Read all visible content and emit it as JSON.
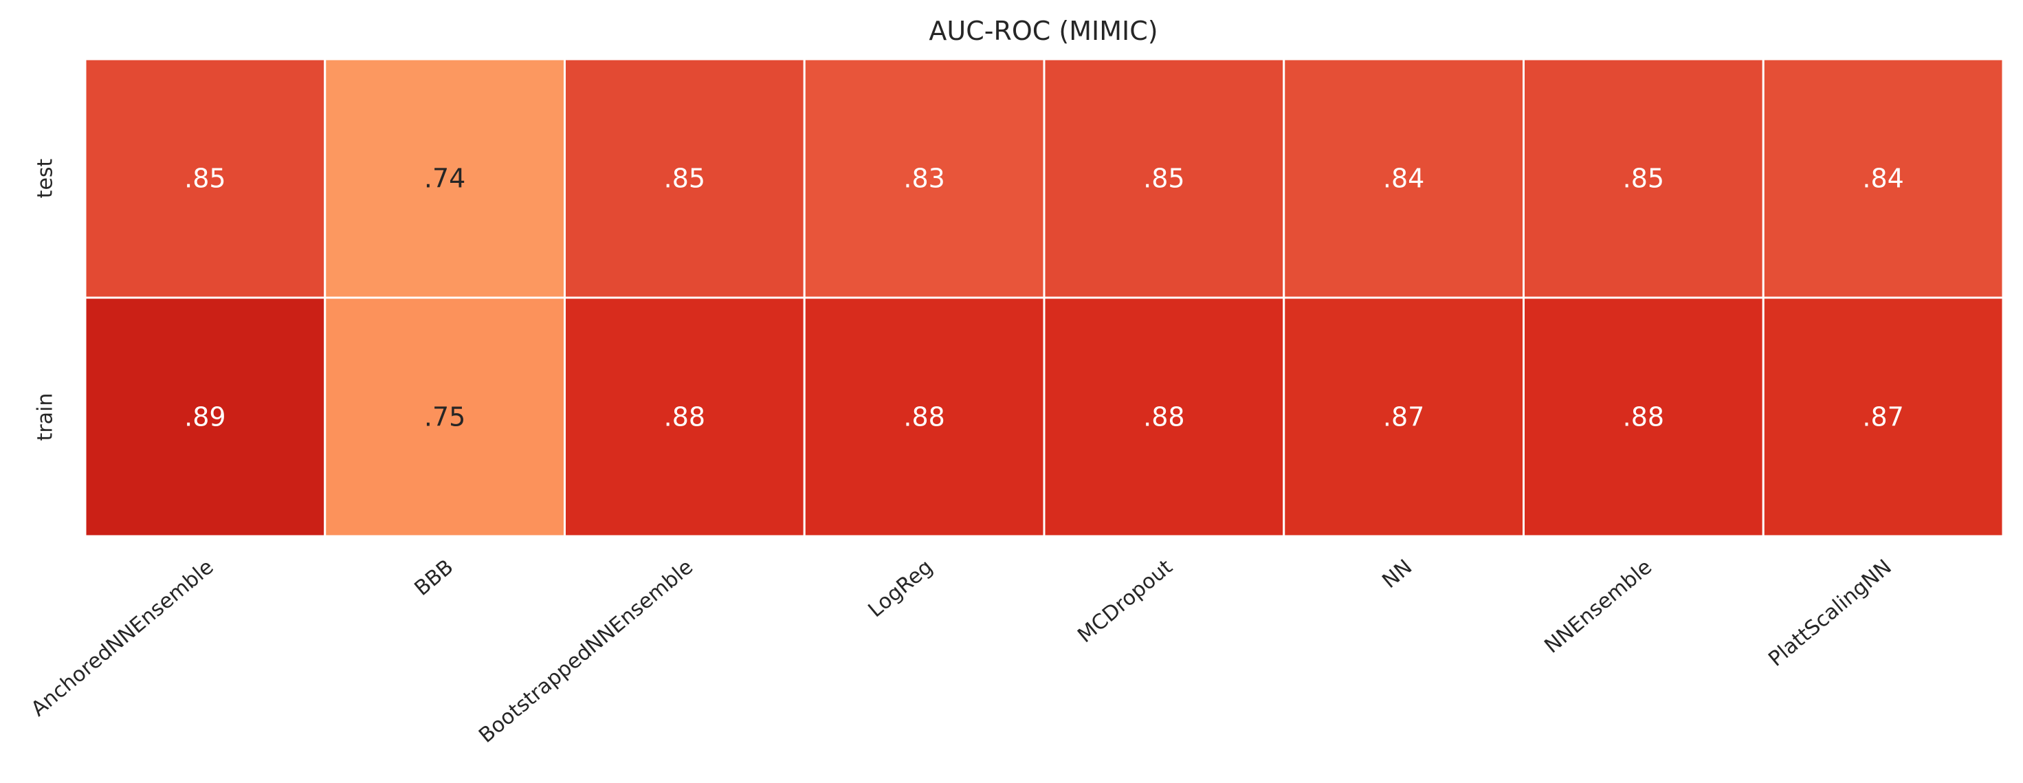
{
  "chart_data": {
    "type": "heatmap",
    "title": "AUC-ROC (MIMIC)",
    "xlabel": "",
    "ylabel": "",
    "x_categories": [
      "AnchoredNNEnsemble",
      "BBB",
      "BootstrappedNNEnsemble",
      "LogReg",
      "MCDropout",
      "NN",
      "NNEnsemble",
      "PlattScalingNN"
    ],
    "y_categories": [
      "test",
      "train"
    ],
    "values": [
      [
        0.85,
        0.74,
        0.85,
        0.83,
        0.85,
        0.84,
        0.85,
        0.84
      ],
      [
        0.89,
        0.75,
        0.88,
        0.88,
        0.88,
        0.87,
        0.88,
        0.87
      ]
    ],
    "cell_labels": [
      [
        ".85",
        ".74",
        ".85",
        ".83",
        ".85",
        ".84",
        ".85",
        ".84"
      ],
      [
        ".89",
        ".75",
        ".88",
        ".88",
        ".88",
        ".87",
        ".88",
        ".87"
      ]
    ],
    "colors": [
      [
        "#e34a33",
        "#fc9860",
        "#e34a33",
        "#e8553a",
        "#e34a33",
        "#e54f36",
        "#e34a33",
        "#e54f36"
      ],
      [
        "#cb2016",
        "#fc925b",
        "#d82c1d",
        "#d82c1d",
        "#d82c1d",
        "#da311f",
        "#d82c1d",
        "#da311f"
      ]
    ],
    "text_colors": [
      [
        "#ffffff",
        "#262626",
        "#ffffff",
        "#ffffff",
        "#ffffff",
        "#ffffff",
        "#ffffff",
        "#ffffff"
      ],
      [
        "#ffffff",
        "#262626",
        "#ffffff",
        "#ffffff",
        "#ffffff",
        "#ffffff",
        "#ffffff",
        "#ffffff"
      ]
    ],
    "colormap": "Reds",
    "colorbar": false,
    "grid": false
  }
}
